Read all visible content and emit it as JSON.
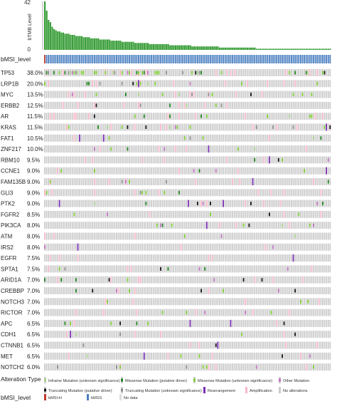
{
  "colors": {
    "tmb_bar": "#3a9e3a",
    "cell_bg": "#cccccc",
    "cell_bg_light": "#d9d9d9",
    "amplification": "#f5b7c7",
    "inframe_unknown": "#a9d18e",
    "missense_driver": "#1a7f1a",
    "missense_unknown": "#7ccc2e",
    "other": "#c070c0",
    "truncating_driver": "#111111",
    "truncating_unknown": "#8a8a8a",
    "rearrangement": "#7b2fb5",
    "bmsi_h": "#c0392b",
    "bmss": "#4a7fc1",
    "no_data": "#dddddd"
  },
  "chart_data": {
    "type": "heatmap",
    "tmb_track": {
      "label": "bTMB Level",
      "max_tick": "42",
      "min_tick": "0",
      "values": [
        42,
        34,
        26,
        24,
        20,
        18,
        17,
        16,
        16,
        15,
        15,
        14,
        14,
        14,
        13,
        13,
        13,
        12,
        12,
        12,
        12,
        11,
        11,
        11,
        11,
        10,
        10,
        10,
        10,
        10,
        9,
        9,
        9,
        9,
        9,
        9,
        8,
        8,
        8,
        8,
        8,
        8,
        7,
        7,
        7,
        7,
        7,
        7,
        7,
        6,
        6,
        6,
        6,
        6,
        6,
        6,
        6,
        5,
        5,
        5,
        5,
        5,
        5,
        5,
        5,
        5,
        5,
        5,
        4,
        4,
        4,
        4,
        4,
        4,
        4,
        4,
        4,
        4,
        4,
        4,
        3,
        3,
        3,
        3,
        3,
        3,
        3,
        3,
        3,
        3,
        3,
        3,
        3,
        3,
        3,
        2,
        2,
        2,
        2,
        2,
        2,
        2,
        2,
        2,
        2,
        2,
        2,
        2,
        2,
        2,
        2,
        2,
        2,
        2,
        2,
        1,
        1,
        1,
        1,
        1,
        1,
        1,
        1,
        1,
        1,
        1,
        1,
        1,
        1,
        1,
        1,
        1,
        1,
        1,
        1,
        1,
        1,
        1,
        1,
        1,
        1,
        1,
        1,
        1,
        1,
        1,
        1,
        1,
        1,
        1,
        1,
        1,
        1,
        1,
        1,
        1
      ]
    },
    "msi_track": {
      "label": "bMSI_level",
      "pattern": "HSSSSSSSSSSSSSSSSSSSSSSSSSSSSSSSSSSSSSSSSSSSSSSSSSSSSSSSSSSSSSSSSSSSSSSSSSSSSSSSSSSSSSSSSSSSSSSSSSSSSSSSSSSSSSSSSSSSSSSSSSSSSSSSSSSSSSSSSSSSSSSSSSSSSSSSSSSSSSSSSSSSS"
    },
    "genes": [
      {
        "gene": "TP53",
        "pct": "38.0%"
      },
      {
        "gene": "LRP1B",
        "pct": "20.0%"
      },
      {
        "gene": "MYC",
        "pct": "13.5%"
      },
      {
        "gene": "ERBB2",
        "pct": "12.5%"
      },
      {
        "gene": "AR",
        "pct": "11.5%"
      },
      {
        "gene": "KRAS",
        "pct": "11.5%"
      },
      {
        "gene": "FAT1",
        "pct": "10.5%"
      },
      {
        "gene": "ZNF217",
        "pct": "10.0%"
      },
      {
        "gene": "RBM10",
        "pct": "9.5%"
      },
      {
        "gene": "CCNE1",
        "pct": "9.0%"
      },
      {
        "gene": "FAM135B",
        "pct": "9.0%"
      },
      {
        "gene": "GLI3",
        "pct": "9.0%"
      },
      {
        "gene": "PTK2",
        "pct": "9.0%"
      },
      {
        "gene": "FGFR2",
        "pct": "8.5%"
      },
      {
        "gene": "PIK3CA",
        "pct": "8.0%"
      },
      {
        "gene": "ATM",
        "pct": "8.0%"
      },
      {
        "gene": "IRS2",
        "pct": "8.0%"
      },
      {
        "gene": "EGFR",
        "pct": "7.5%"
      },
      {
        "gene": "SPTA1",
        "pct": "7.5%"
      },
      {
        "gene": "ARID1A",
        "pct": "7.0%"
      },
      {
        "gene": "CREBBP",
        "pct": "7.0%"
      },
      {
        "gene": "NOTCH3",
        "pct": "7.0%"
      },
      {
        "gene": "RICTOR",
        "pct": "7.0%"
      },
      {
        "gene": "APC",
        "pct": "6.5%"
      },
      {
        "gene": "CDH1",
        "pct": "6.5%"
      },
      {
        "gene": "CTNNB1",
        "pct": "6.5%"
      },
      {
        "gene": "MET",
        "pct": "6.5%"
      },
      {
        "gene": "NOTCH2",
        "pct": "6.0%"
      }
    ],
    "legend": {
      "alteration_title": "Alteration Type",
      "alteration_items": [
        {
          "label": "Inframe Mutation (unknown significance)",
          "color_key": "inframe_unknown",
          "kind": "mut"
        },
        {
          "label": "Missense Mutation (putative driver)",
          "color_key": "missense_driver",
          "kind": "mut"
        },
        {
          "label": "Missense Mutation (unknown significance)",
          "color_key": "missense_unknown",
          "kind": "mut"
        },
        {
          "label": "Other Mutation",
          "color_key": "other",
          "kind": "mut"
        },
        {
          "label": "Truncating Mutation (putative driver)",
          "color_key": "truncating_driver",
          "kind": "mut"
        },
        {
          "label": "Truncating Mutation (unknown significance)",
          "color_key": "truncating_unknown",
          "kind": "mut"
        },
        {
          "label": "Rearrangement",
          "color_key": "rearrangement",
          "kind": "full"
        },
        {
          "label": "Amplification",
          "color_key": "amplification",
          "kind": "full"
        },
        {
          "label": "No alterations",
          "color_key": "cell_bg",
          "kind": "full"
        }
      ],
      "msi_title": "bMSI_level",
      "msi_items": [
        {
          "label": "bMSI-H",
          "color_key": "bmsi_h"
        },
        {
          "label": "bMSS",
          "color_key": "bmss"
        },
        {
          "label": "No data",
          "color_key": "no_data"
        }
      ]
    }
  }
}
